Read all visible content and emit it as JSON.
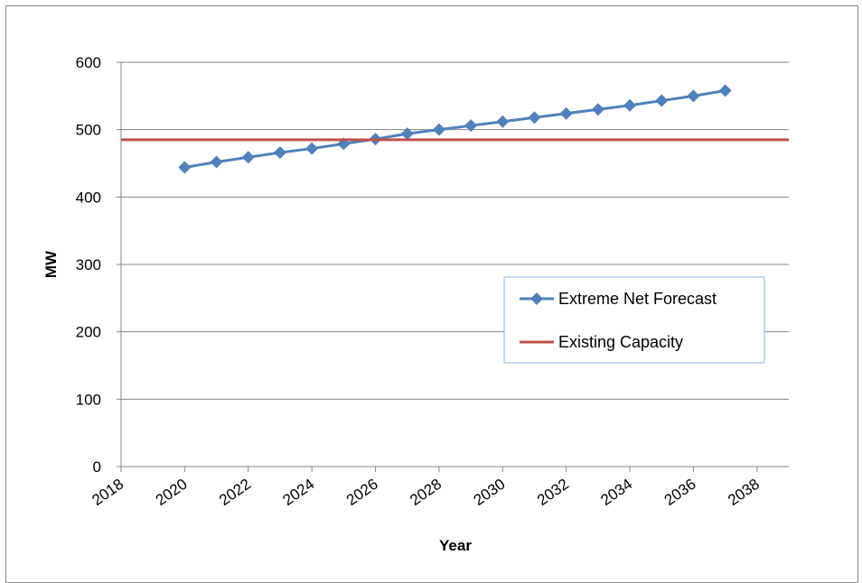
{
  "chart_data": {
    "type": "line",
    "title": "",
    "xlabel": "Year",
    "ylabel": "MW",
    "xlim": [
      2018,
      2039
    ],
    "ylim": [
      0,
      600
    ],
    "x_ticks": [
      2018,
      2020,
      2022,
      2024,
      2026,
      2028,
      2030,
      2032,
      2034,
      2036,
      2038
    ],
    "y_ticks": [
      0,
      100,
      200,
      300,
      400,
      500,
      600
    ],
    "grid": "horizontal",
    "legend_position": "right-center",
    "series": [
      {
        "name": "Extreme Net Forecast",
        "color": "#4f81bd",
        "marker": "diamond",
        "x": [
          2020,
          2021,
          2022,
          2023,
          2024,
          2025,
          2026,
          2027,
          2028,
          2029,
          2030,
          2031,
          2032,
          2033,
          2034,
          2035,
          2036,
          2037
        ],
        "values": [
          444,
          452,
          459,
          466,
          472,
          479,
          486,
          494,
          500,
          506,
          512,
          518,
          524,
          530,
          536,
          543,
          550,
          558
        ]
      },
      {
        "name": "Existing Capacity",
        "color": "#c0504d",
        "marker": "none",
        "x": [
          2018,
          2039
        ],
        "values": [
          485,
          485
        ]
      }
    ]
  }
}
